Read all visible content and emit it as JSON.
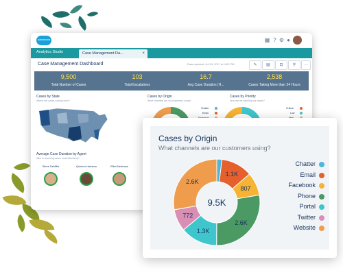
{
  "brand": {
    "logo_text": "salesforce"
  },
  "app": {
    "name": "Analytics Studio",
    "tab_label": "Case Management Da...",
    "tab_close": "×"
  },
  "topbar": {
    "icons": [
      "grid-icon",
      "help-icon",
      "gear-icon",
      "bell-icon"
    ],
    "glyphs": [
      "▦",
      "?",
      "⚙",
      "●"
    ]
  },
  "dashboard": {
    "title": "Case Management Dashboard",
    "updated": "Data updated: Jul 19, 2017 at 4:00 PM",
    "tools": [
      "✎",
      "▤",
      "⊡",
      "⚲",
      "···"
    ],
    "kpis": [
      {
        "value": "9,500",
        "label": "Total Number of Cases"
      },
      {
        "value": "103",
        "label": "Total Escalations"
      },
      {
        "value": "16.7",
        "label": "Avg Case Duration (H..."
      },
      {
        "value": "2,538",
        "label": "Cases Taking More than 24 Hours"
      }
    ],
    "panels": {
      "state": {
        "title": "Cases by State",
        "sub": "Where are cases coming from?"
      },
      "origin": {
        "title": "Cases by Origin",
        "sub": "What channels are our customers using?"
      },
      "priority": {
        "title": "Cases by Priority",
        "sub": "How are we handling our cases?"
      },
      "agent": {
        "title": "Average Case Duration by Agent",
        "sub": "Who is resolving cases most effectively?"
      }
    },
    "origin_mini_legend": [
      "Chatter",
      "Email",
      "Facebook"
    ],
    "priority_mini_legend": [
      "Critical",
      "Low",
      "High"
    ],
    "agents": [
      "Steve DeMille",
      "Quinton Harrison",
      "Elliot Neuhaus"
    ]
  },
  "card": {
    "title": "Cases by Origin",
    "subtitle": "What channels are our customers using?",
    "total_label": "9.5K"
  },
  "colors": {
    "Chatter": "#4fb6d9",
    "Email": "#e5602c",
    "Facebook": "#f6b334",
    "Phone": "#4c9a63",
    "Portal": "#3fc6cc",
    "Twitter": "#d98fb4",
    "Website": "#ef9d4d"
  },
  "chart_data": {
    "type": "pie",
    "title": "Cases by Origin",
    "subtitle": "What channels are our customers using?",
    "center_label": "9.5K",
    "slices": [
      {
        "name": "Chatter",
        "value": 180,
        "label": ""
      },
      {
        "name": "Email",
        "value": 1100,
        "label": "1.1K"
      },
      {
        "name": "Facebook",
        "value": 807,
        "label": "807"
      },
      {
        "name": "Phone",
        "value": 2600,
        "label": "2.6K"
      },
      {
        "name": "Portal",
        "value": 1300,
        "label": "1.3K"
      },
      {
        "name": "Twitter",
        "value": 772,
        "label": "772"
      },
      {
        "name": "Website",
        "value": 2600,
        "label": "2.6K"
      }
    ],
    "legend": [
      "Chatter",
      "Email",
      "Facebook",
      "Phone",
      "Portal",
      "Twitter",
      "Website"
    ],
    "legend_position": "right"
  }
}
